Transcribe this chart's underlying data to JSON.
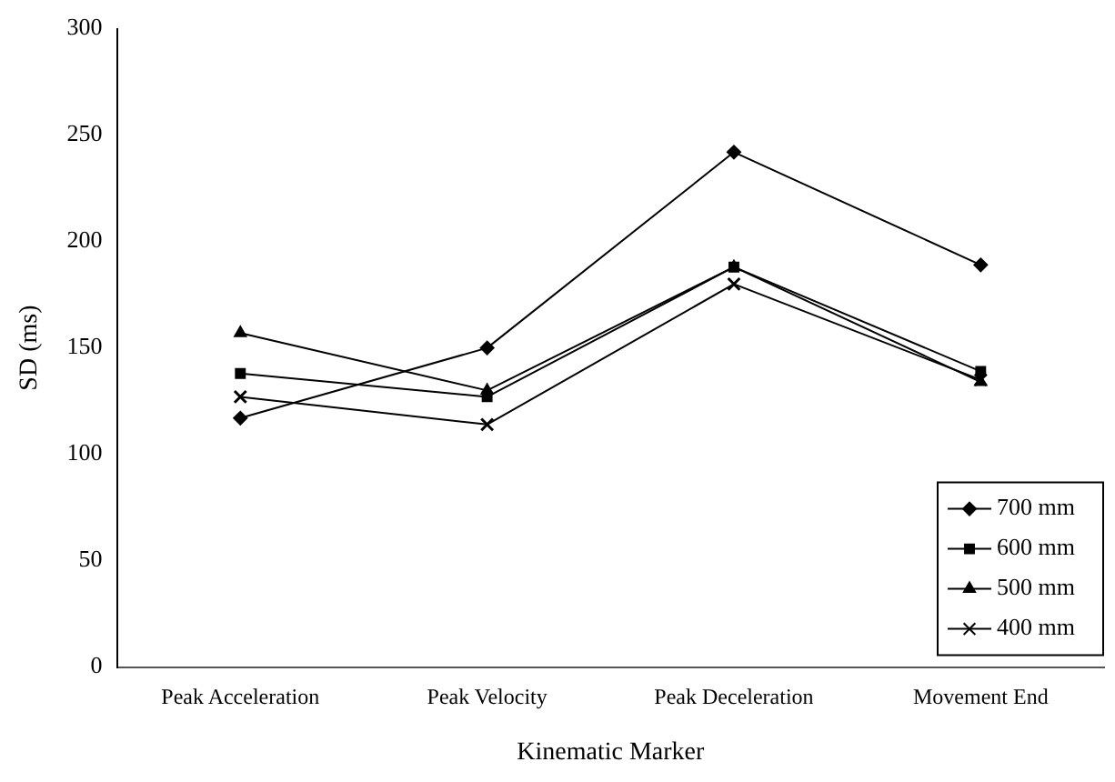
{
  "chart_data": {
    "type": "line",
    "xlabel": "Kinematic Marker",
    "ylabel": "SD (ms)",
    "categories": [
      "Peak Acceleration",
      "Peak Velocity",
      "Peak Deceleration",
      "Movement End"
    ],
    "series": [
      {
        "name": "700 mm",
        "color": "#000000",
        "marker": "diamond",
        "values": [
          117,
          150,
          242,
          189
        ]
      },
      {
        "name": "600 mm",
        "color": "#000000",
        "marker": "square",
        "values": [
          138,
          127,
          188,
          139
        ]
      },
      {
        "name": "500 mm",
        "color": "#000000",
        "marker": "triangle",
        "values": [
          157,
          130,
          188,
          134
        ]
      },
      {
        "name": "400 mm",
        "color": "#000000",
        "marker": "cross",
        "values": [
          127,
          114,
          180,
          135
        ]
      }
    ],
    "ylim": [
      0,
      300
    ],
    "yticks": [
      0,
      50,
      100,
      150,
      200,
      250,
      300
    ],
    "grid": false,
    "legend": "bottom right",
    "line_style": "solid"
  }
}
